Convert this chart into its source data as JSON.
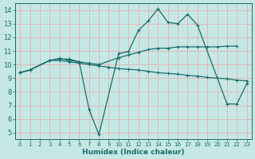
{
  "xlabel": "Humidex (Indice chaleur)",
  "bg_color": "#c5e8e5",
  "grid_color": "#e0b8b8",
  "line_color": "#1a6b6b",
  "xlim": [
    -0.5,
    23.5
  ],
  "ylim": [
    4.5,
    14.5
  ],
  "xticks": [
    0,
    1,
    2,
    3,
    4,
    5,
    6,
    7,
    8,
    9,
    10,
    11,
    12,
    13,
    14,
    15,
    16,
    17,
    18,
    19,
    20,
    21,
    22,
    23
  ],
  "yticks": [
    5,
    6,
    7,
    8,
    9,
    10,
    11,
    12,
    13,
    14
  ],
  "line1_x": [
    0,
    1,
    3,
    4,
    5,
    6,
    7,
    8,
    10,
    11,
    12,
    13,
    14,
    15,
    16,
    17,
    18,
    21,
    22,
    23
  ],
  "line1_y": [
    9.4,
    9.6,
    10.3,
    10.4,
    10.4,
    10.2,
    6.7,
    4.85,
    10.8,
    10.95,
    12.5,
    13.2,
    14.1,
    13.1,
    13.0,
    13.7,
    12.9,
    7.1,
    7.1,
    8.6
  ],
  "line2_x": [
    0,
    1,
    3,
    4,
    5,
    6,
    7,
    8,
    9,
    10,
    11,
    12,
    13,
    14,
    15,
    16,
    17,
    18,
    19,
    20,
    21,
    22,
    23
  ],
  "line2_y": [
    9.4,
    9.6,
    10.3,
    10.3,
    10.2,
    10.1,
    10.0,
    9.9,
    9.8,
    9.7,
    9.65,
    9.6,
    9.5,
    9.4,
    9.35,
    9.3,
    9.2,
    9.15,
    9.05,
    9.0,
    8.95,
    8.85,
    8.8
  ],
  "line3_x": [
    0,
    1,
    3,
    4,
    5,
    6,
    7,
    8,
    10,
    11,
    12,
    13,
    14,
    15,
    16,
    17,
    18,
    19,
    20,
    21,
    22
  ],
  "line3_y": [
    9.4,
    9.6,
    10.3,
    10.45,
    10.3,
    10.2,
    10.1,
    10.0,
    10.5,
    10.7,
    10.9,
    11.1,
    11.2,
    11.2,
    11.3,
    11.3,
    11.3,
    11.3,
    11.3,
    11.35,
    11.35
  ]
}
